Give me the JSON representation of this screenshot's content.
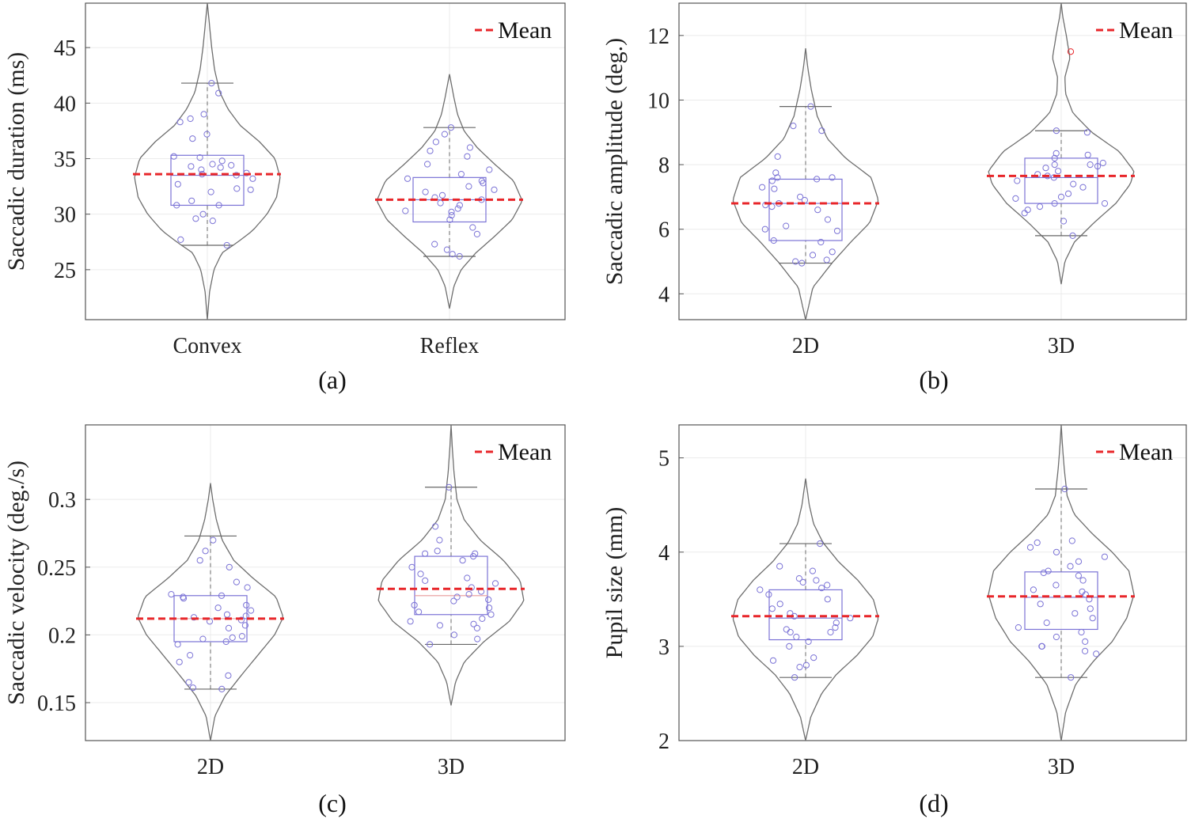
{
  "chart_data": [
    {
      "type": "violin",
      "caption": "(a)",
      "ylabel": "Saccadic duration (ms)",
      "ylim": [
        20.5,
        49
      ],
      "yticks": [
        25,
        30,
        35,
        40,
        45
      ],
      "ytick_labels": [
        "25",
        "30",
        "35",
        "40",
        "45"
      ],
      "categories": [
        "Convex",
        "Reflex"
      ],
      "legend": {
        "label": "Mean",
        "color": "#e8262a",
        "position": "top-right"
      },
      "colors": {
        "violin": "#6e6e6e",
        "box": "#7b73d6",
        "points": "#7b73d6",
        "mean": "#e8262a",
        "grid": "#ebebeb"
      },
      "series": [
        {
          "name": "Convex",
          "violin_range": [
            20.5,
            49
          ],
          "violin_profile": [
            [
              20.5,
              0.0
            ],
            [
              23,
              0.03
            ],
            [
              25,
              0.09
            ],
            [
              26.5,
              0.2
            ],
            [
              27.5,
              0.42
            ],
            [
              28.5,
              0.62
            ],
            [
              30,
              0.82
            ],
            [
              31.5,
              0.95
            ],
            [
              33.3,
              1.0
            ],
            [
              35,
              0.93
            ],
            [
              36.5,
              0.72
            ],
            [
              38,
              0.45
            ],
            [
              39.5,
              0.28
            ],
            [
              41,
              0.17
            ],
            [
              43,
              0.1
            ],
            [
              45,
              0.06
            ],
            [
              47,
              0.03
            ],
            [
              49,
              0.0
            ]
          ],
          "whisker_low": 27.2,
          "q1": 30.8,
          "median": 33.5,
          "q3": 35.3,
          "whisker_high": 41.8,
          "mean": 33.6,
          "points": [
            27.2,
            27.7,
            29.4,
            29.6,
            30.0,
            30.8,
            30.8,
            31.2,
            32.0,
            32.2,
            32.3,
            32.7,
            33.2,
            33.5,
            33.6,
            33.7,
            34.0,
            34.2,
            34.3,
            34.4,
            34.5,
            34.8,
            35.1,
            35.2,
            36.8,
            37.2,
            38.3,
            38.6,
            39.0,
            40.9,
            41.8
          ]
        },
        {
          "name": "Reflex",
          "violin_range": [
            21.5,
            42.6
          ],
          "violin_profile": [
            [
              21.5,
              0.0
            ],
            [
              23.5,
              0.06
            ],
            [
              25,
              0.16
            ],
            [
              26.5,
              0.36
            ],
            [
              28,
              0.62
            ],
            [
              29.5,
              0.86
            ],
            [
              31.2,
              1.0
            ],
            [
              33,
              0.88
            ],
            [
              34.5,
              0.62
            ],
            [
              36,
              0.38
            ],
            [
              37.5,
              0.2
            ],
            [
              39,
              0.11
            ],
            [
              40.5,
              0.06
            ],
            [
              42.6,
              0.0
            ]
          ],
          "whisker_low": 26.2,
          "q1": 29.3,
          "median": 31.3,
          "q3": 33.3,
          "whisker_high": 37.8,
          "mean": 31.3,
          "points": [
            26.2,
            26.4,
            26.8,
            27.3,
            28.2,
            28.8,
            29.5,
            29.9,
            30.2,
            30.3,
            30.5,
            30.8,
            31.0,
            31.3,
            31.5,
            31.7,
            32.0,
            32.2,
            32.5,
            32.8,
            33.0,
            33.2,
            33.6,
            34.0,
            34.5,
            35.2,
            35.7,
            36.0,
            36.5,
            37.2,
            37.8
          ]
        }
      ]
    },
    {
      "type": "violin",
      "caption": "(b)",
      "ylabel": "Saccadic amplitude (deg.)",
      "ylim": [
        3.2,
        13
      ],
      "yticks": [
        4,
        6,
        8,
        10,
        12
      ],
      "ytick_labels": [
        "4",
        "6",
        "8",
        "10",
        "12"
      ],
      "categories": [
        "2D",
        "3D"
      ],
      "legend": {
        "label": "Mean",
        "color": "#e8262a",
        "position": "top-right"
      },
      "colors": {
        "violin": "#6e6e6e",
        "box": "#7b73d6",
        "points": "#7b73d6",
        "mean": "#e8262a",
        "outlier": "#e8262a",
        "grid": "#ebebeb"
      },
      "series": [
        {
          "name": "2D",
          "violin_range": [
            3.2,
            11.6
          ],
          "violin_profile": [
            [
              3.2,
              0.0
            ],
            [
              4.2,
              0.1
            ],
            [
              5.0,
              0.38
            ],
            [
              5.6,
              0.62
            ],
            [
              6.2,
              0.88
            ],
            [
              6.9,
              1.0
            ],
            [
              7.6,
              0.9
            ],
            [
              8.2,
              0.55
            ],
            [
              8.8,
              0.3
            ],
            [
              9.5,
              0.16
            ],
            [
              10.3,
              0.08
            ],
            [
              11.0,
              0.03
            ],
            [
              11.6,
              0.0
            ]
          ],
          "whisker_low": 4.95,
          "q1": 5.65,
          "median": 6.8,
          "q3": 7.55,
          "whisker_high": 9.8,
          "mean": 6.8,
          "points": [
            4.95,
            5.0,
            5.05,
            5.2,
            5.3,
            5.6,
            5.65,
            5.95,
            6.0,
            6.1,
            6.3,
            6.6,
            6.7,
            6.75,
            6.8,
            6.9,
            7.0,
            7.25,
            7.3,
            7.5,
            7.55,
            7.6,
            7.6,
            7.75,
            8.25,
            9.05,
            9.2,
            9.8
          ]
        },
        {
          "name": "3D",
          "violin_range": [
            4.3,
            13
          ],
          "violin_profile": [
            [
              4.3,
              0.0
            ],
            [
              5.0,
              0.05
            ],
            [
              5.6,
              0.18
            ],
            [
              6.2,
              0.45
            ],
            [
              6.8,
              0.75
            ],
            [
              7.4,
              0.95
            ],
            [
              7.8,
              1.0
            ],
            [
              8.4,
              0.8
            ],
            [
              9.0,
              0.42
            ],
            [
              9.6,
              0.16
            ],
            [
              10.2,
              0.06
            ],
            [
              10.7,
              0.05
            ],
            [
              11.3,
              0.12
            ],
            [
              12.0,
              0.07
            ],
            [
              12.6,
              0.02
            ],
            [
              13.0,
              0.0
            ]
          ],
          "whisker_low": 5.8,
          "q1": 6.8,
          "median": 7.6,
          "q3": 8.2,
          "whisker_high": 9.05,
          "mean": 7.65,
          "points": [
            5.8,
            6.25,
            6.5,
            6.6,
            6.7,
            6.8,
            6.8,
            6.95,
            7.0,
            7.1,
            7.3,
            7.4,
            7.5,
            7.6,
            7.65,
            7.7,
            7.8,
            7.9,
            7.95,
            8.0,
            8.0,
            8.05,
            8.2,
            8.3,
            8.35,
            9.0,
            9.05
          ],
          "outliers": [
            11.5
          ]
        }
      ]
    },
    {
      "type": "violin",
      "caption": "(c)",
      "ylabel": "Saccadic velocity (deg./s)",
      "ylim": [
        0.122,
        0.355
      ],
      "yticks": [
        0.15,
        0.2,
        0.25,
        0.3
      ],
      "ytick_labels": [
        "0.15",
        "0.2",
        "0.25",
        "0.3"
      ],
      "categories": [
        "2D",
        "3D"
      ],
      "legend": {
        "label": "Mean",
        "color": "#e8262a",
        "position": "top-right"
      },
      "colors": {
        "violin": "#6e6e6e",
        "box": "#7b73d6",
        "points": "#7b73d6",
        "mean": "#e8262a",
        "median_alt": "#e89a9a",
        "grid": "#ebebeb"
      },
      "series": [
        {
          "name": "2D",
          "violin_range": [
            0.122,
            0.312
          ],
          "violin_profile": [
            [
              0.122,
              0.0
            ],
            [
              0.14,
              0.06
            ],
            [
              0.155,
              0.2
            ],
            [
              0.17,
              0.42
            ],
            [
              0.185,
              0.65
            ],
            [
              0.2,
              0.88
            ],
            [
              0.213,
              1.0
            ],
            [
              0.228,
              0.9
            ],
            [
              0.242,
              0.58
            ],
            [
              0.255,
              0.32
            ],
            [
              0.27,
              0.16
            ],
            [
              0.285,
              0.08
            ],
            [
              0.3,
              0.03
            ],
            [
              0.312,
              0.0
            ]
          ],
          "whisker_low": 0.16,
          "q1": 0.195,
          "median": 0.212,
          "q3": 0.229,
          "whisker_high": 0.273,
          "mean": 0.212,
          "points": [
            0.16,
            0.161,
            0.165,
            0.17,
            0.18,
            0.185,
            0.193,
            0.195,
            0.197,
            0.198,
            0.199,
            0.205,
            0.207,
            0.21,
            0.211,
            0.213,
            0.214,
            0.215,
            0.218,
            0.22,
            0.222,
            0.227,
            0.228,
            0.229,
            0.23,
            0.235,
            0.239,
            0.25,
            0.255,
            0.262,
            0.27
          ]
        },
        {
          "name": "3D",
          "violin_range": [
            0.148,
            0.355
          ],
          "violin_profile": [
            [
              0.148,
              0.0
            ],
            [
              0.165,
              0.06
            ],
            [
              0.18,
              0.18
            ],
            [
              0.195,
              0.45
            ],
            [
              0.21,
              0.8
            ],
            [
              0.225,
              1.0
            ],
            [
              0.24,
              0.95
            ],
            [
              0.255,
              0.72
            ],
            [
              0.27,
              0.4
            ],
            [
              0.285,
              0.18
            ],
            [
              0.3,
              0.08
            ],
            [
              0.32,
              0.04
            ],
            [
              0.34,
              0.015
            ],
            [
              0.355,
              0.0
            ]
          ],
          "whisker_low": 0.193,
          "q1": 0.215,
          "median": 0.229,
          "q3": 0.258,
          "whisker_high": 0.309,
          "mean": 0.234,
          "points": [
            0.193,
            0.197,
            0.2,
            0.205,
            0.207,
            0.208,
            0.21,
            0.212,
            0.215,
            0.217,
            0.22,
            0.222,
            0.225,
            0.226,
            0.228,
            0.23,
            0.232,
            0.235,
            0.238,
            0.24,
            0.242,
            0.245,
            0.25,
            0.255,
            0.258,
            0.26,
            0.26,
            0.262,
            0.27,
            0.28,
            0.309
          ]
        }
      ]
    },
    {
      "type": "violin",
      "caption": "(d)",
      "ylabel": "Pupil size (mm)",
      "ylim": [
        2,
        5.35
      ],
      "yticks": [
        2,
        3,
        4,
        5
      ],
      "ytick_labels": [
        "2",
        "3",
        "4",
        "5"
      ],
      "categories": [
        "2D",
        "3D"
      ],
      "legend": {
        "label": "Mean",
        "color": "#e8262a",
        "position": "top-right"
      },
      "colors": {
        "violin": "#6e6e6e",
        "box": "#7b73d6",
        "points": "#7b73d6",
        "mean": "#e8262a",
        "grid": "#ebebeb"
      },
      "series": [
        {
          "name": "2D",
          "violin_range": [
            2.0,
            4.78
          ],
          "violin_profile": [
            [
              2.0,
              0.0
            ],
            [
              2.25,
              0.07
            ],
            [
              2.5,
              0.22
            ],
            [
              2.7,
              0.42
            ],
            [
              2.9,
              0.7
            ],
            [
              3.1,
              0.92
            ],
            [
              3.3,
              1.0
            ],
            [
              3.5,
              0.93
            ],
            [
              3.7,
              0.72
            ],
            [
              3.9,
              0.45
            ],
            [
              4.1,
              0.24
            ],
            [
              4.3,
              0.11
            ],
            [
              4.5,
              0.05
            ],
            [
              4.78,
              0.0
            ]
          ],
          "whisker_low": 2.67,
          "q1": 3.07,
          "median": 3.3,
          "q3": 3.6,
          "whisker_high": 4.09,
          "mean": 3.32,
          "points": [
            2.67,
            2.78,
            2.8,
            2.85,
            2.88,
            3.0,
            3.05,
            3.1,
            3.15,
            3.15,
            3.18,
            3.2,
            3.25,
            3.3,
            3.32,
            3.35,
            3.4,
            3.45,
            3.5,
            3.55,
            3.6,
            3.62,
            3.65,
            3.68,
            3.7,
            3.72,
            3.8,
            3.85,
            4.09
          ]
        },
        {
          "name": "3D",
          "violin_range": [
            2.0,
            5.35
          ],
          "violin_profile": [
            [
              2.0,
              0.0
            ],
            [
              2.3,
              0.06
            ],
            [
              2.6,
              0.2
            ],
            [
              2.85,
              0.45
            ],
            [
              3.05,
              0.7
            ],
            [
              3.3,
              0.9
            ],
            [
              3.55,
              1.0
            ],
            [
              3.8,
              0.93
            ],
            [
              4.0,
              0.7
            ],
            [
              4.2,
              0.42
            ],
            [
              4.4,
              0.18
            ],
            [
              4.6,
              0.08
            ],
            [
              4.9,
              0.04
            ],
            [
              5.15,
              0.015
            ],
            [
              5.35,
              0.0
            ]
          ],
          "whisker_low": 2.67,
          "q1": 3.18,
          "median": 3.52,
          "q3": 3.79,
          "whisker_high": 4.67,
          "mean": 3.53,
          "points": [
            2.67,
            2.92,
            2.95,
            3.0,
            3.0,
            3.05,
            3.1,
            3.15,
            3.2,
            3.25,
            3.3,
            3.35,
            3.4,
            3.45,
            3.5,
            3.55,
            3.58,
            3.6,
            3.65,
            3.7,
            3.75,
            3.78,
            3.8,
            3.85,
            3.9,
            3.95,
            4.0,
            4.05,
            4.1,
            4.12,
            4.67
          ]
        }
      ]
    }
  ]
}
